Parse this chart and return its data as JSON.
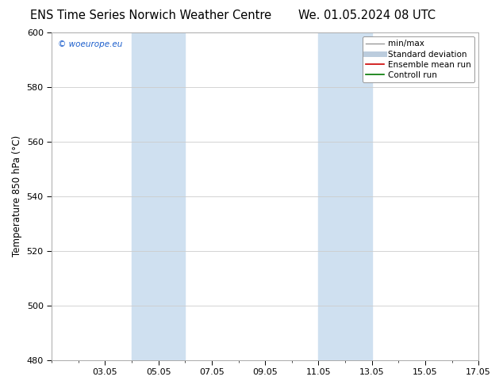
{
  "title_left": "ENS Time Series Norwich Weather Centre",
  "title_right": "We. 01.05.2024 08 UTC",
  "ylabel": "Temperature 850 hPa (°C)",
  "ylim": [
    480,
    600
  ],
  "yticks": [
    480,
    500,
    520,
    540,
    560,
    580,
    600
  ],
  "xlim": [
    0,
    16
  ],
  "xtick_labels": [
    "03.05",
    "05.05",
    "07.05",
    "09.05",
    "11.05",
    "13.05",
    "15.05",
    "17.05"
  ],
  "xtick_days": [
    2,
    4,
    6,
    8,
    10,
    12,
    14,
    16
  ],
  "shaded_bands": [
    {
      "start_day": 3,
      "end_day": 5
    },
    {
      "start_day": 10,
      "end_day": 12
    }
  ],
  "band_color": "#cfe0f0",
  "watermark": "© woeurope.eu",
  "watermark_color": "#1a5dcc",
  "legend_items": [
    {
      "label": "min/max",
      "color": "#999999",
      "lw": 1.0
    },
    {
      "label": "Standard deviation",
      "color": "#bbccdd",
      "lw": 5
    },
    {
      "label": "Ensemble mean run",
      "color": "#cc0000",
      "lw": 1.2
    },
    {
      "label": "Controll run",
      "color": "#007700",
      "lw": 1.2
    }
  ],
  "bg_color": "#ffffff",
  "grid_color": "#cccccc",
  "title_fontsize": 10.5,
  "ylabel_fontsize": 8.5,
  "tick_fontsize": 8,
  "legend_fontsize": 7.5
}
